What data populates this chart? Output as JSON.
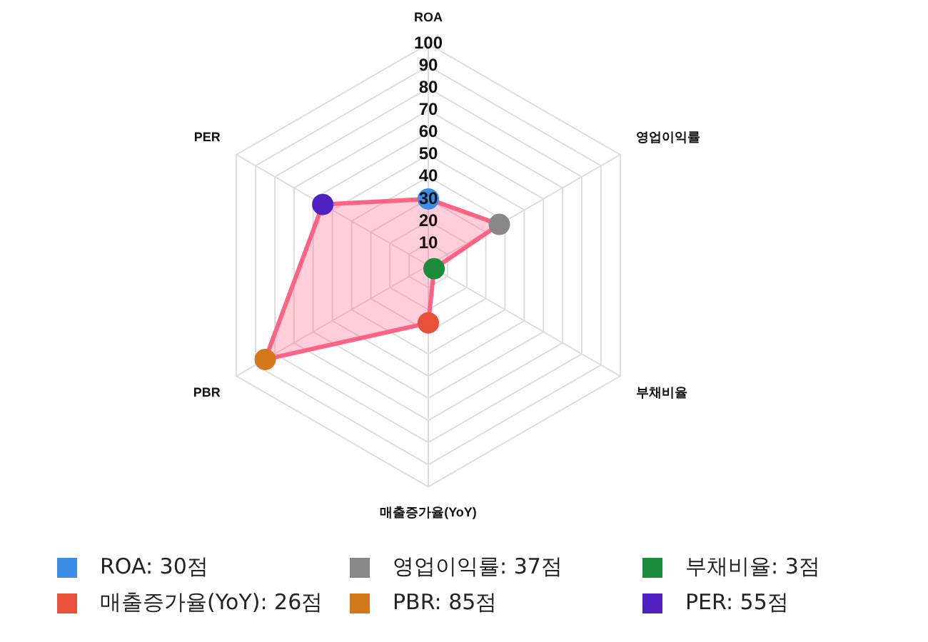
{
  "chart_data": {
    "type": "radar",
    "categories": [
      "ROA",
      "영업이익률",
      "부채비율",
      "매출증가율(YoY)",
      "PBR",
      "PER"
    ],
    "series": [
      {
        "color": "#ff6384",
        "colors": [
          "#3a8ee6",
          "#888888",
          "#1a8c3a",
          "#e8503a",
          "#d4781c",
          "#5020c0"
        ],
        "values": [
          30,
          37,
          3,
          26,
          85,
          55
        ]
      }
    ],
    "annotations": [
      "ROA: 30점",
      "영업이익률: 37점",
      "부채비율: 3점",
      "매출증가율(YoY): 26점",
      "PBR: 85점",
      "PER: 55점"
    ],
    "ylim": [
      0,
      100
    ],
    "yticks": [
      10,
      20,
      30,
      40,
      50,
      60,
      70,
      80,
      90,
      100
    ],
    "grid": true,
    "marker": "circle"
  }
}
